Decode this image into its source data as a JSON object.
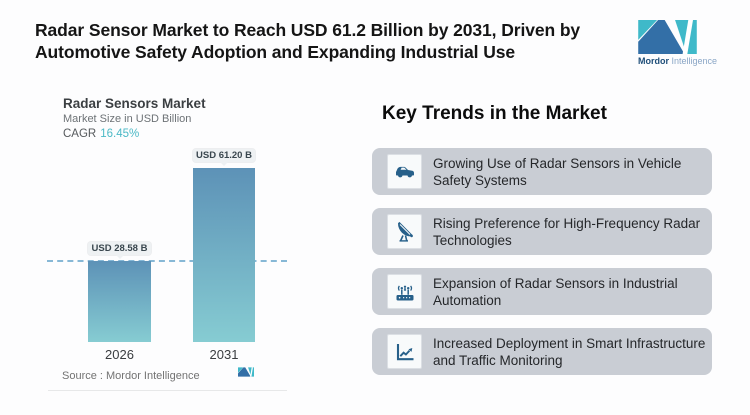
{
  "page": {
    "title_line1": "Radar Sensor Market to Reach USD 61.2 Billion by 2031, Driven by",
    "title_line2": "Automotive Safety Adoption and Expanding Industrial Use"
  },
  "brand": {
    "name_bold": "Mordor",
    "name_light": "Intelligence",
    "color_dark_blue": "#336fa7",
    "color_teal": "#3fb9c9"
  },
  "chart": {
    "title": "Radar Sensors Market",
    "subtitle": "Market Size in USD Billion",
    "cagr_label": "CAGR",
    "cagr_value": "16.45%",
    "cagr_color": "#4cb9c6",
    "source_text": "Source :  Mordor Intelligence"
  },
  "chart_data": {
    "type": "bar",
    "title": "Radar Sensors Market",
    "ylabel": "Market Size in USD Billion",
    "categories": [
      "2026",
      "2031"
    ],
    "values": [
      28.58,
      61.2
    ],
    "value_labels": [
      "USD 28.58 B",
      "USD 61.20 B"
    ],
    "cagr_percent": 16.45,
    "reference_line_at": 28.58,
    "bar_gradient_top": "#5d92b7",
    "bar_gradient_bottom": "#86ccd2",
    "reference_line_color": "#87b8d6",
    "grid": false,
    "legend": false
  },
  "trends": {
    "heading": "Key Trends in the Market",
    "card_color": "#c9cdd4",
    "icon_color": "#27608a",
    "items": [
      {
        "icon": "car-icon",
        "text": "Growing Use of Radar Sensors in Vehicle Safety Systems"
      },
      {
        "icon": "satellite-dish-icon",
        "text": "Rising Preference for High-Frequency Radar Technologies"
      },
      {
        "icon": "industrial-antenna-icon",
        "text": "Expansion of Radar Sensors in Industrial Automation"
      },
      {
        "icon": "growth-chart-icon",
        "text": "Increased Deployment in Smart Infrastructure and Traffic Monitoring"
      }
    ]
  }
}
